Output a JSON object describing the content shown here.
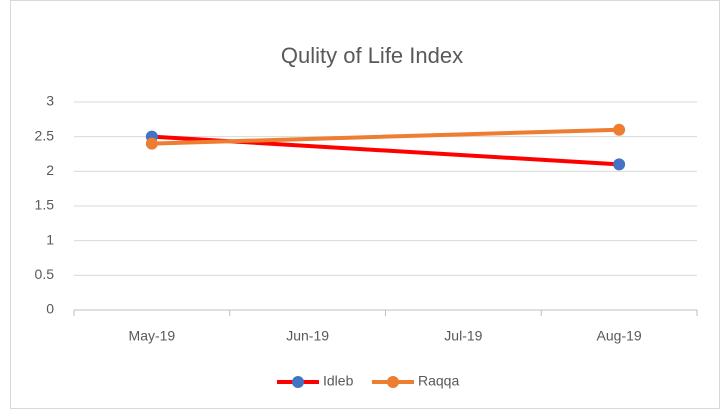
{
  "chart_data": {
    "type": "line",
    "title": "Qulity of Life Index",
    "categories": [
      "May-19",
      "Jun-19",
      "Jul-19",
      "Aug-19"
    ],
    "series": [
      {
        "name": "Idleb",
        "color": "#ff0000",
        "marker_color": "#4472c4",
        "values": [
          2.5,
          null,
          null,
          2.1
        ]
      },
      {
        "name": "Raqqa",
        "color": "#ed7d31",
        "marker_color": "#ed7d31",
        "values": [
          2.4,
          null,
          null,
          2.6
        ]
      }
    ],
    "connect_gaps": true,
    "ylim": [
      0,
      3
    ],
    "yticks": [
      0,
      0.5,
      1,
      1.5,
      2,
      2.5,
      3
    ],
    "grid": true,
    "legend": "bottom"
  }
}
